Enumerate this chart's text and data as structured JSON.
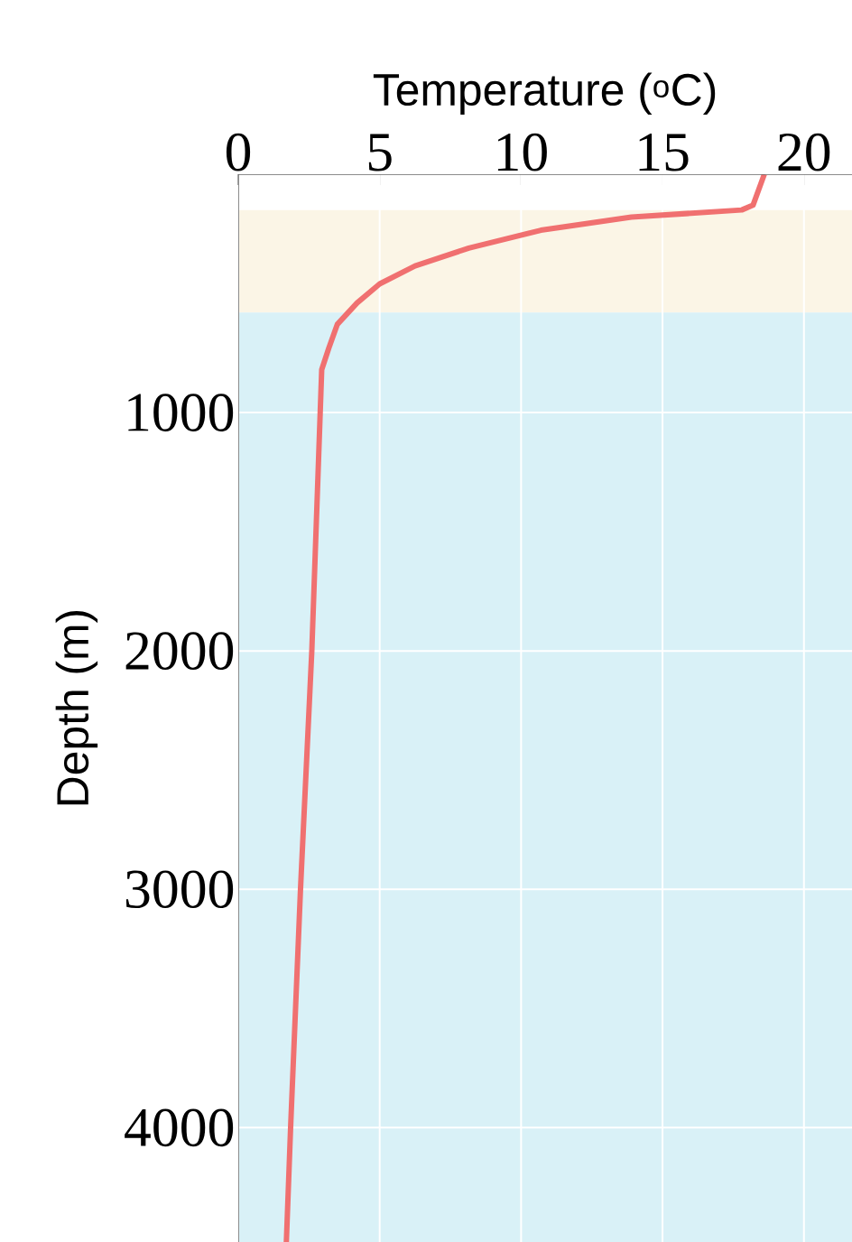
{
  "chart_data": {
    "type": "line",
    "xlabel": "Temperature ($^{o}$C)",
    "ylabel": "Depth (m)",
    "xlim": [
      0,
      21.7
    ],
    "xticks": [
      0,
      5,
      10,
      15,
      20
    ],
    "ylim": [
      4480,
      0
    ],
    "yticks": [
      1000,
      2000,
      3000,
      4000
    ],
    "grid": true,
    "bands": [
      {
        "axis": "y",
        "from": 150,
        "to": 580,
        "color": "#fbf5e6"
      },
      {
        "axis": "y",
        "from": 580,
        "to": 4480,
        "color": "#d9f1f7"
      }
    ],
    "series": [
      {
        "color": "#f07070",
        "x": [
          18.6,
          18.2,
          17.8,
          13.9,
          10.7,
          8.15,
          6.25,
          5.0,
          4.2,
          3.5,
          3.2,
          2.95,
          2.6,
          2.2,
          1.85,
          1.7
        ],
        "values": [
          0,
          130,
          150,
          180,
          235,
          310,
          385,
          460,
          540,
          630,
          730,
          820,
          2000,
          3000,
          4000,
          4480
        ]
      }
    ]
  }
}
